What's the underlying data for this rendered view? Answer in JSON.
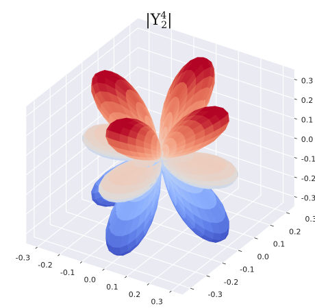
{
  "chart_data": {
    "type": "surface-3d",
    "title": {
      "prefix": "|Y",
      "superscript": "4",
      "subscript": "2",
      "suffix": "|"
    },
    "function": "|Y_l^m(theta, phi)| (spherical harmonic magnitude as radius)",
    "degree_l": 4,
    "order_m": 2,
    "colormap": "coolwarm",
    "color_by": "z",
    "xlim": [
      -0.35,
      0.35
    ],
    "ylim": [
      -0.35,
      0.35
    ],
    "zlim": [
      -0.35,
      0.35
    ],
    "x_ticks": [
      "-0.3",
      "-0.2",
      "-0.1",
      "0.0",
      "0.1",
      "0.2",
      "0.3"
    ],
    "y_ticks": [
      "-0.3",
      "-0.2",
      "-0.1",
      "0.0",
      "0.1",
      "0.2",
      "0.3"
    ],
    "z_ticks": [
      "-0.3",
      "-0.2",
      "-0.1",
      "0.0",
      "0.1",
      "0.2",
      "0.3"
    ],
    "x_tick_values": [
      -0.3,
      -0.2,
      -0.1,
      0.0,
      0.1,
      0.2,
      0.3
    ],
    "y_tick_values": [
      -0.3,
      -0.2,
      -0.1,
      0.0,
      0.1,
      0.2,
      0.3
    ],
    "z_tick_values": [
      -0.3,
      -0.2,
      -0.1,
      0.0,
      0.1,
      0.2,
      0.3
    ],
    "grid": true,
    "pane_color": "#eaeaf2",
    "grid_color": "#ffffff",
    "view_elevation_deg": 30,
    "view_azimuth_deg": -60
  },
  "colors": {
    "background": "#ffffff",
    "pane": "#eaeaf2",
    "grid": "#ffffff",
    "cool": "#3b4cc0",
    "neutral": "#dddddd",
    "warm": "#b40426"
  }
}
